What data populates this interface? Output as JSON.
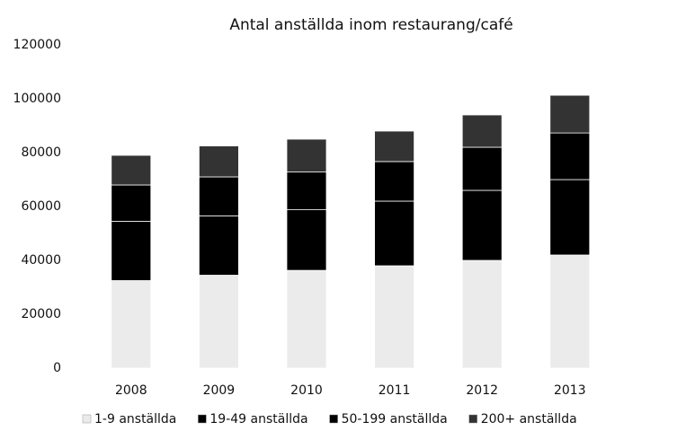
{
  "chart_data": {
    "type": "stacked_bar",
    "title": "Antal anställda inom restaurang/café",
    "categories": [
      "2008",
      "2009",
      "2010",
      "2011",
      "2012",
      "2013"
    ],
    "series": [
      {
        "name": "1-9 anställda",
        "color": "#ebebeb",
        "values": [
          32500,
          34500,
          36300,
          38000,
          40000,
          42000
        ]
      },
      {
        "name": "19-49 anställda",
        "color": "#000000",
        "values": [
          22000,
          22000,
          22500,
          24000,
          26000,
          28000
        ]
      },
      {
        "name": "50-199 anställda",
        "color": "#000000",
        "values": [
          13500,
          14500,
          14000,
          14700,
          16000,
          17300
        ]
      },
      {
        "name": "200+ anställda",
        "color": "#333333",
        "values": [
          11000,
          11500,
          12200,
          11300,
          12000,
          14000
        ]
      }
    ],
    "ylim": [
      0,
      120000
    ],
    "yticks": [
      0,
      20000,
      40000,
      60000,
      80000,
      100000,
      120000
    ],
    "grid": false,
    "legend": "bottom"
  }
}
